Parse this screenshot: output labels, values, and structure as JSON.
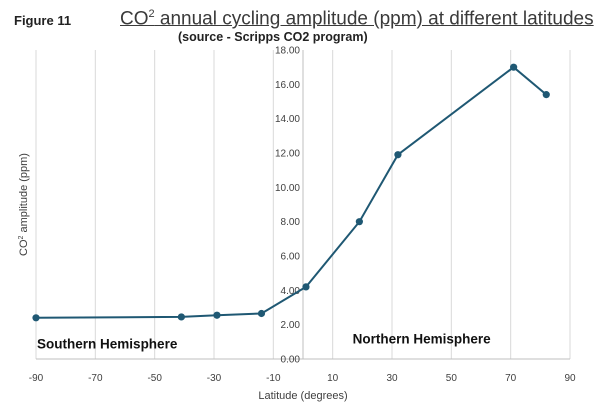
{
  "figure_label": "Figure 11",
  "title_prefix": "CO",
  "title_sup": "2",
  "title_rest": " annual cycling amplitude (ppm) at different latitudes",
  "subtitle": "(source - Scripps CO2 program)",
  "chart_data": {
    "type": "line",
    "title": "CO2 annual cycling amplitude (ppm) at different latitudes",
    "subtitle": "(source - Scripps CO2 program)",
    "xlabel": "Latitude (degrees)",
    "ylabel_prefix": "CO",
    "ylabel_sup": "2",
    "ylabel_rest": " amplitude (ppm)",
    "xlim": [
      -90,
      90
    ],
    "ylim": [
      0,
      18
    ],
    "xticks": [
      "-90",
      "-70",
      "-50",
      "-30",
      "-10",
      "10",
      "30",
      "50",
      "70",
      "90"
    ],
    "xtick_values": [
      -90,
      -70,
      -50,
      -30,
      -10,
      10,
      30,
      50,
      70,
      90
    ],
    "yticks": [
      "0.00",
      "2.00",
      "4.00",
      "6.00",
      "8.00",
      "10.00",
      "12.00",
      "14.00",
      "16.00",
      "18.00"
    ],
    "ytick_values": [
      0,
      2,
      4,
      6,
      8,
      10,
      12,
      14,
      16,
      18
    ],
    "grid": "vertical",
    "series": [
      {
        "x": [
          -90,
          -41,
          -29,
          -14,
          1,
          19,
          32,
          71,
          82
        ],
        "y": [
          2.4,
          2.45,
          2.55,
          2.65,
          4.2,
          8.0,
          11.9,
          17.0,
          15.4
        ]
      }
    ],
    "annotations": [
      {
        "text": "Southern Hemisphere",
        "x": -66,
        "y": 0.6
      },
      {
        "text": "Northern Hemisphere",
        "x": 40,
        "y": 0.9
      }
    ],
    "line_color": "#1f5873"
  }
}
